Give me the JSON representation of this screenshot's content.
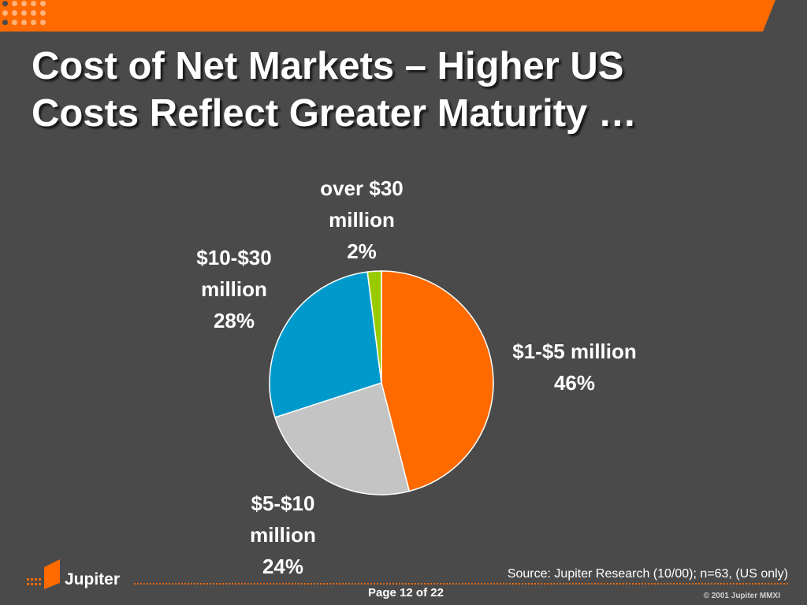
{
  "slide": {
    "title_line1": "Cost of Net Markets – Higher US",
    "title_line2": "Costs Reflect Greater Maturity …",
    "source": "Source: Jupiter Research (10/00); n=63, (US only)",
    "page": "Page 12 of 22",
    "copyright": "© 2001 Jupiter MMXI",
    "logo_text": "Jupiter"
  },
  "colors": {
    "background": "#4a4a4a",
    "accent": "#ff6a00"
  },
  "chart_data": {
    "type": "pie",
    "title": "",
    "slices": [
      {
        "label_lines": [
          "$1-$5 million",
          "46%"
        ],
        "category": "$1-$5 million",
        "value": 46,
        "color": "#ff6a00"
      },
      {
        "label_lines": [
          "$5-$10",
          "million",
          "24%"
        ],
        "category": "$5-$10 million",
        "value": 24,
        "color": "#c4c4c4"
      },
      {
        "label_lines": [
          "$10-$30",
          "million",
          "28%"
        ],
        "category": "$10-$30 million",
        "value": 28,
        "color": "#0099cc"
      },
      {
        "label_lines": [
          "over $30",
          "million",
          "2%"
        ],
        "category": "over $30 million",
        "value": 2,
        "color": "#99cc00"
      }
    ]
  }
}
